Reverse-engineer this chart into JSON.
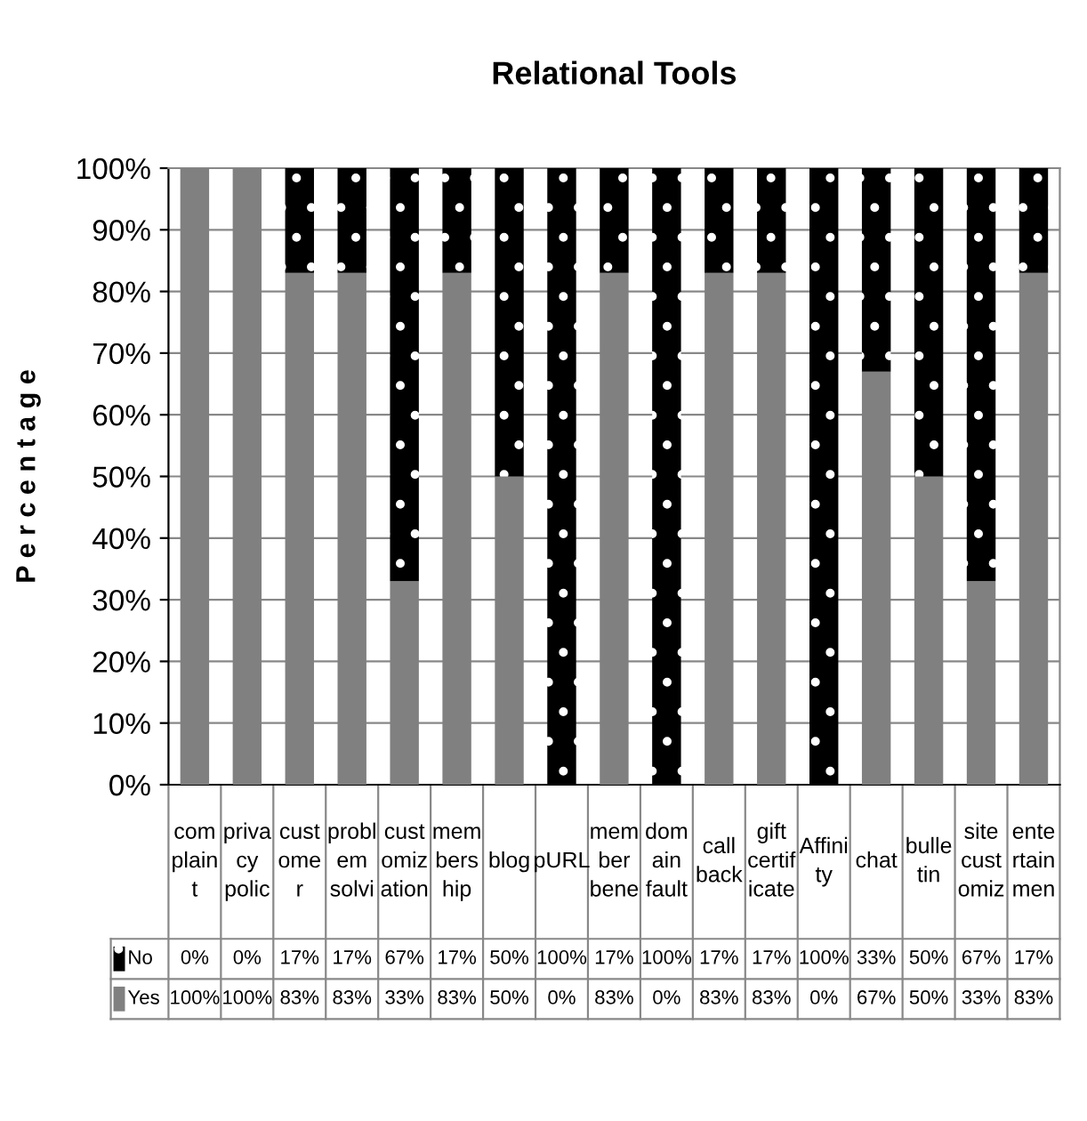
{
  "chart_data": {
    "type": "bar",
    "title": "Relational Tools",
    "ylabel": "P e r c e n t a g e",
    "stacked": true,
    "categories": [
      "com\nplain\nt",
      "priva\ncy\npolic",
      "cust\nome\nr",
      "probl\nem\nsolvi",
      "cust\nomiz\nation",
      "mem\nbers\nhip",
      "blog",
      "pURL",
      "mem\nber\nbene",
      "dom\nain\nfault",
      "call\nback",
      "gift\ncertif\nicate",
      "Affini\nty",
      "chat",
      "bulle\ntin",
      "site\ncust\nomiz",
      "ente\nrtain\nmen"
    ],
    "series": [
      {
        "name": "Yes",
        "color": "#808080",
        "values": [
          100,
          100,
          83,
          83,
          33,
          83,
          50,
          0,
          83,
          0,
          83,
          83,
          0,
          67,
          50,
          33,
          83
        ],
        "value_labels": [
          "100%",
          "100%",
          "83%",
          "83%",
          "33%",
          "83%",
          "50%",
          "0%",
          "83%",
          "0%",
          "83%",
          "83%",
          "0%",
          "67%",
          "50%",
          "33%",
          "83%"
        ]
      },
      {
        "name": "No",
        "color": "#000000",
        "values": [
          0,
          0,
          17,
          17,
          67,
          17,
          50,
          100,
          17,
          100,
          17,
          17,
          100,
          33,
          50,
          67,
          17
        ],
        "value_labels": [
          "0%",
          "0%",
          "17%",
          "17%",
          "67%",
          "17%",
          "50%",
          "100%",
          "17%",
          "100%",
          "17%",
          "17%",
          "100%",
          "33%",
          "50%",
          "67%",
          "17%"
        ]
      }
    ],
    "ylim": [
      0,
      100
    ],
    "yticks": [
      {
        "value": 0,
        "label": "0%"
      },
      {
        "value": 10,
        "label": "10%"
      },
      {
        "value": 20,
        "label": "20%"
      },
      {
        "value": 30,
        "label": "30%"
      },
      {
        "value": 40,
        "label": "40%"
      },
      {
        "value": 50,
        "label": "50%"
      },
      {
        "value": 60,
        "label": "60%"
      },
      {
        "value": 70,
        "label": "70%"
      },
      {
        "value": 80,
        "label": "80%"
      },
      {
        "value": 90,
        "label": "90%"
      },
      {
        "value": 100,
        "label": "100%"
      }
    ],
    "grid": "y",
    "legend": "bottom"
  }
}
